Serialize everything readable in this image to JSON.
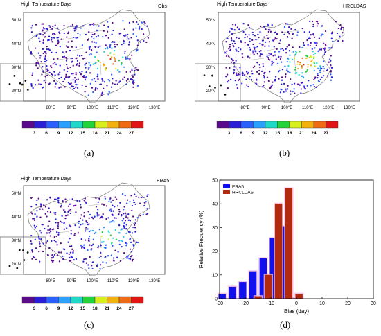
{
  "panels": [
    {
      "title": "High Temperature Days",
      "source": "Obs",
      "label": "(a)"
    },
    {
      "title": "High Temperature Days",
      "source": "HRCLDAS",
      "label": "(b)"
    },
    {
      "title": "High Temperature Days",
      "source": "ERA5",
      "label": "(c)"
    }
  ],
  "map_axes": {
    "lat_ticks": [
      "50°N",
      "40°N",
      "30°N",
      "20°N"
    ],
    "lon_ticks": [
      "80°E",
      "90°E",
      "100°E",
      "110°E",
      "120°E",
      "130°E"
    ]
  },
  "colorbar": {
    "ticks": [
      "3",
      "6",
      "9",
      "12",
      "15",
      "18",
      "21",
      "24",
      "27"
    ],
    "colors": [
      "#5a0a8c",
      "#2a1fd6",
      "#2b5fff",
      "#2aa0ff",
      "#1ed9c8",
      "#22d43a",
      "#d8ef1e",
      "#f2b10d",
      "#ef6a12",
      "#e11515"
    ]
  },
  "chart_data": {
    "type": "bar",
    "label": "(d)",
    "xlabel": "Bias (day)",
    "ylabel": "Relative Frequency (%)",
    "xlim": [
      -30,
      30
    ],
    "ylim": [
      0,
      50
    ],
    "xticks": [
      "-30",
      "-20",
      "-10",
      "0",
      "10",
      "20",
      "30"
    ],
    "yticks": [
      "0",
      "10",
      "20",
      "30",
      "40",
      "50"
    ],
    "legend_position": "top-left",
    "series": [
      {
        "name": "ERA5",
        "color": "#1111ee",
        "x": [
          -29,
          -25,
          -21,
          -17,
          -13,
          -9,
          -5,
          -1,
          3,
          7,
          11,
          15,
          19,
          23,
          27
        ],
        "values": [
          2,
          5,
          7,
          11.5,
          17,
          25.5,
          30.5,
          0.3,
          0,
          0,
          0,
          0,
          0,
          0,
          0
        ]
      },
      {
        "name": "HRCLDAS",
        "color": "#b22a0e",
        "x": [
          -27,
          -23,
          -19,
          -15,
          -11,
          -7,
          -3,
          1,
          5,
          9,
          13,
          17,
          21,
          25,
          29
        ],
        "values": [
          0,
          0,
          0,
          1,
          10,
          40,
          46.5,
          2,
          0,
          0,
          0,
          0,
          0,
          0,
          0
        ]
      }
    ]
  }
}
